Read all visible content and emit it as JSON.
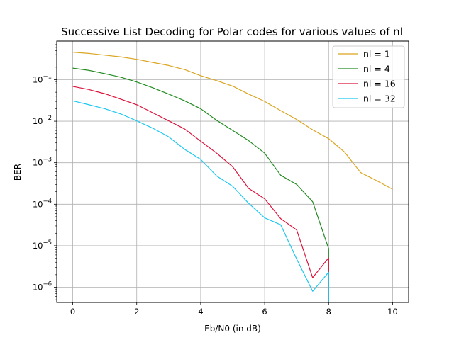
{
  "chart_data": {
    "type": "line",
    "title": "Successive List Decoding for Polar codes for various values of nl",
    "xlabel": "Eb/N0 (in dB)",
    "ylabel": "BER",
    "xlim": [
      -0.5,
      10.5
    ],
    "ylim": [
      4.3e-07,
      0.85
    ],
    "yscale": "log",
    "grid": true,
    "legend_position": "top-right",
    "xticks": [
      {
        "value": 0,
        "label": "0"
      },
      {
        "value": 2,
        "label": "2"
      },
      {
        "value": 4,
        "label": "4"
      },
      {
        "value": 6,
        "label": "6"
      },
      {
        "value": 8,
        "label": "8"
      },
      {
        "value": 10,
        "label": "10"
      }
    ],
    "yticks": [
      {
        "value": 1e-06,
        "base": "10",
        "exp": "−6"
      },
      {
        "value": 1e-05,
        "base": "10",
        "exp": "−5"
      },
      {
        "value": 0.0001,
        "base": "10",
        "exp": "−4"
      },
      {
        "value": 0.001,
        "base": "10",
        "exp": "−3"
      },
      {
        "value": 0.01,
        "base": "10",
        "exp": "−2"
      },
      {
        "value": 0.1,
        "base": "10",
        "exp": "−1"
      }
    ],
    "series": [
      {
        "name": "nl = 1",
        "color": "#DAA520",
        "points": [
          [
            0,
            0.46
          ],
          [
            0.5,
            0.43
          ],
          [
            1,
            0.39
          ],
          [
            1.5,
            0.355
          ],
          [
            2,
            0.31
          ],
          [
            2.5,
            0.26
          ],
          [
            3,
            0.22
          ],
          [
            3.5,
            0.175
          ],
          [
            4,
            0.125
          ],
          [
            4.5,
            0.095
          ],
          [
            5,
            0.07
          ],
          [
            5.5,
            0.045
          ],
          [
            6,
            0.03
          ],
          [
            6.5,
            0.018
          ],
          [
            7,
            0.011
          ],
          [
            7.5,
            0.0062
          ],
          [
            8,
            0.0038
          ],
          [
            8.5,
            0.0018
          ],
          [
            9,
            0.00058
          ],
          [
            9.5,
            0.00037
          ],
          [
            10,
            0.00023
          ]
        ]
      },
      {
        "name": "nl = 4",
        "color": "#228B22",
        "points": [
          [
            0,
            0.19
          ],
          [
            0.5,
            0.168
          ],
          [
            1,
            0.14
          ],
          [
            1.5,
            0.115
          ],
          [
            2,
            0.088
          ],
          [
            2.5,
            0.064
          ],
          [
            3,
            0.045
          ],
          [
            3.5,
            0.031
          ],
          [
            4,
            0.02
          ],
          [
            4.5,
            0.0105
          ],
          [
            5,
            0.006
          ],
          [
            5.5,
            0.0034
          ],
          [
            6,
            0.0017
          ],
          [
            6.5,
            0.0005
          ],
          [
            7,
            0.0003
          ],
          [
            7.5,
            0.000115
          ],
          [
            8,
            8.5e-06
          ],
          [
            8,
            4.3e-07
          ]
        ]
      },
      {
        "name": "nl = 16",
        "color": "#DC143C",
        "points": [
          [
            0,
            0.069
          ],
          [
            0.5,
            0.058
          ],
          [
            1,
            0.046
          ],
          [
            1.5,
            0.034
          ],
          [
            2,
            0.025
          ],
          [
            2.5,
            0.016
          ],
          [
            3,
            0.0102
          ],
          [
            3.5,
            0.0065
          ],
          [
            4,
            0.0033
          ],
          [
            4.5,
            0.0017
          ],
          [
            5,
            0.0008
          ],
          [
            5.5,
            0.00024
          ],
          [
            6,
            0.000135
          ],
          [
            6.5,
            4.5e-05
          ],
          [
            7,
            2.4e-05
          ],
          [
            7.5,
            1.7e-06
          ],
          [
            8,
            5.1e-06
          ],
          [
            8,
            4.3e-07
          ]
        ]
      },
      {
        "name": "nl = 32",
        "color": "#1EC8F0",
        "points": [
          [
            0,
            0.031
          ],
          [
            0.5,
            0.025
          ],
          [
            1,
            0.02
          ],
          [
            1.5,
            0.015
          ],
          [
            2,
            0.0102
          ],
          [
            2.5,
            0.0068
          ],
          [
            3,
            0.0042
          ],
          [
            3.5,
            0.0021
          ],
          [
            4,
            0.0012
          ],
          [
            4.5,
            0.00048
          ],
          [
            5,
            0.00027
          ],
          [
            5.5,
            0.000105
          ],
          [
            6,
            4.7e-05
          ],
          [
            6.5,
            3.2e-05
          ],
          [
            7,
            4.8e-06
          ],
          [
            7.5,
            8e-07
          ],
          [
            8,
            2.3e-06
          ],
          [
            8,
            4.3e-07
          ]
        ]
      }
    ]
  }
}
